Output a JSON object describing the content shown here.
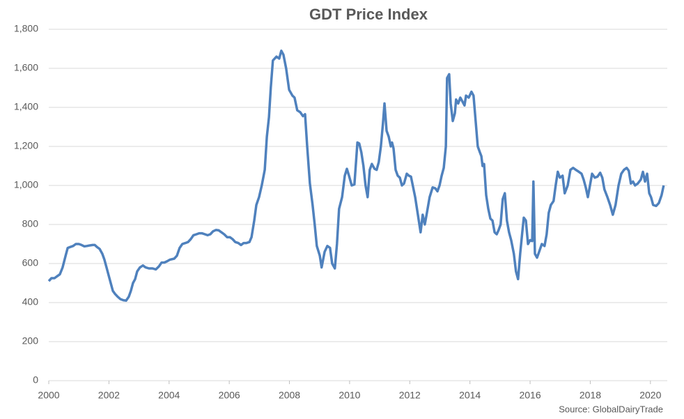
{
  "chart_data": {
    "type": "line",
    "title": "GDT Price Index",
    "source": "Source: GlobalDairyTrade",
    "xlim": [
      2000,
      2020.56
    ],
    "xticks": [
      2000,
      2002,
      2004,
      2006,
      2008,
      2010,
      2012,
      2014,
      2016,
      2018,
      2020
    ],
    "ylim": [
      0,
      1800
    ],
    "yticks": [
      0,
      200,
      400,
      600,
      800,
      {
        "value": 1000,
        "label": "1,000"
      },
      {
        "value": 1200,
        "label": "1,200"
      },
      {
        "value": 1400,
        "label": "1,400"
      },
      {
        "value": 1600,
        "label": "1,600"
      },
      {
        "value": 1800,
        "label": "1,800"
      }
    ],
    "grid": true,
    "series": [
      {
        "name": "GDT Price Index",
        "color": "#4f81bd",
        "x": [
          2000.0,
          2000.09,
          2000.19,
          2000.28,
          2000.37,
          2000.46,
          2000.56,
          2000.63,
          2000.72,
          2000.81,
          2000.9,
          2001.0,
          2001.09,
          2001.18,
          2001.27,
          2001.37,
          2001.46,
          2001.53,
          2001.6,
          2001.69,
          2001.78,
          2001.85,
          2001.92,
          2001.99,
          2002.06,
          2002.13,
          2002.2,
          2002.29,
          2002.38,
          2002.48,
          2002.57,
          2002.66,
          2002.73,
          2002.8,
          2002.87,
          2002.94,
          2003.03,
          2003.13,
          2003.22,
          2003.33,
          2003.45,
          2003.56,
          2003.66,
          2003.75,
          2003.84,
          2003.94,
          2004.03,
          2004.17,
          2004.26,
          2004.35,
          2004.44,
          2004.54,
          2004.63,
          2004.72,
          2004.81,
          2004.91,
          2005.0,
          2005.09,
          2005.19,
          2005.28,
          2005.37,
          2005.46,
          2005.56,
          2005.65,
          2005.74,
          2005.83,
          2005.93,
          2006.02,
          2006.11,
          2006.2,
          2006.3,
          2006.39,
          2006.48,
          2006.57,
          2006.67,
          2006.74,
          2006.83,
          2006.9,
          2006.99,
          2007.08,
          2007.18,
          2007.25,
          2007.32,
          2007.38,
          2007.45,
          2007.57,
          2007.66,
          2007.73,
          2007.8,
          2007.89,
          2007.99,
          2008.1,
          2008.17,
          2008.26,
          2008.36,
          2008.45,
          2008.52,
          2008.59,
          2008.68,
          2008.77,
          2008.84,
          2008.91,
          2009.01,
          2009.07,
          2009.17,
          2009.26,
          2009.35,
          2009.42,
          2009.51,
          2009.58,
          2009.65,
          2009.75,
          2009.84,
          2009.91,
          2009.98,
          2010.07,
          2010.16,
          2010.26,
          2010.32,
          2010.39,
          2010.46,
          2010.53,
          2010.6,
          2010.67,
          2010.74,
          2010.83,
          2010.9,
          2010.97,
          2011.04,
          2011.11,
          2011.16,
          2011.23,
          2011.3,
          2011.37,
          2011.41,
          2011.46,
          2011.53,
          2011.6,
          2011.67,
          2011.74,
          2011.81,
          2011.9,
          2011.97,
          2012.04,
          2012.18,
          2012.27,
          2012.36,
          2012.43,
          2012.5,
          2012.57,
          2012.66,
          2012.76,
          2012.85,
          2012.92,
          2012.99,
          2013.06,
          2013.13,
          2013.2,
          2013.24,
          2013.31,
          2013.36,
          2013.43,
          2013.5,
          2013.54,
          2013.61,
          2013.68,
          2013.75,
          2013.82,
          2013.87,
          2013.96,
          2014.05,
          2014.12,
          2014.19,
          2014.26,
          2014.33,
          2014.38,
          2014.42,
          2014.47,
          2014.54,
          2014.61,
          2014.68,
          2014.75,
          2014.82,
          2014.89,
          2014.95,
          2015.02,
          2015.09,
          2015.16,
          2015.23,
          2015.3,
          2015.37,
          2015.46,
          2015.53,
          2015.6,
          2015.67,
          2015.74,
          2015.79,
          2015.86,
          2015.93,
          2016.0,
          2016.07,
          2016.11,
          2016.16,
          2016.23,
          2016.3,
          2016.39,
          2016.48,
          2016.55,
          2016.62,
          2016.69,
          2016.78,
          2016.85,
          2016.92,
          2016.99,
          2017.08,
          2017.15,
          2017.25,
          2017.34,
          2017.43,
          2017.52,
          2017.62,
          2017.71,
          2017.78,
          2017.85,
          2017.92,
          2017.99,
          2018.06,
          2018.15,
          2018.24,
          2018.33,
          2018.4,
          2018.47,
          2018.57,
          2018.66,
          2018.75,
          2018.84,
          2018.94,
          2019.03,
          2019.12,
          2019.21,
          2019.28,
          2019.35,
          2019.42,
          2019.49,
          2019.58,
          2019.68,
          2019.75,
          2019.82,
          2019.89,
          2019.96,
          2020.02,
          2020.09,
          2020.19,
          2020.28,
          2020.37,
          2020.44
        ],
        "values": [
          510,
          525,
          525,
          535,
          545,
          580,
          640,
          680,
          685,
          690,
          700,
          700,
          695,
          688,
          690,
          693,
          695,
          695,
          685,
          675,
          650,
          620,
          580,
          540,
          500,
          460,
          445,
          430,
          418,
          412,
          410,
          430,
          460,
          500,
          520,
          560,
          580,
          590,
          580,
          575,
          575,
          570,
          585,
          605,
          605,
          612,
          620,
          625,
          640,
          680,
          700,
          705,
          710,
          725,
          745,
          750,
          755,
          755,
          750,
          745,
          750,
          765,
          772,
          770,
          760,
          750,
          735,
          735,
          725,
          710,
          705,
          695,
          705,
          705,
          710,
          735,
          820,
          900,
          940,
          1000,
          1080,
          1250,
          1350,
          1500,
          1640,
          1660,
          1650,
          1690,
          1670,
          1600,
          1490,
          1460,
          1450,
          1385,
          1375,
          1355,
          1365,
          1200,
          1010,
          900,
          800,
          690,
          640,
          580,
          660,
          690,
          680,
          600,
          575,
          700,
          880,
          940,
          1050,
          1085,
          1050,
          1000,
          1005,
          1220,
          1215,
          1170,
          1100,
          1000,
          940,
          1080,
          1110,
          1085,
          1080,
          1120,
          1200,
          1320,
          1420,
          1280,
          1250,
          1200,
          1220,
          1190,
          1080,
          1050,
          1040,
          1000,
          1010,
          1060,
          1050,
          1045,
          940,
          850,
          760,
          850,
          800,
          860,
          940,
          990,
          985,
          970,
          1000,
          1050,
          1090,
          1200,
          1550,
          1570,
          1420,
          1330,
          1370,
          1440,
          1420,
          1450,
          1430,
          1410,
          1460,
          1450,
          1480,
          1460,
          1330,
          1200,
          1170,
          1150,
          1100,
          1110,
          950,
          880,
          830,
          820,
          760,
          750,
          770,
          800,
          930,
          960,
          820,
          760,
          720,
          650,
          560,
          520,
          650,
          760,
          835,
          820,
          700,
          720,
          715,
          1020,
          650,
          630,
          660,
          700,
          690,
          750,
          860,
          900,
          920,
          1000,
          1070,
          1040,
          1050,
          960,
          1000,
          1080,
          1090,
          1080,
          1070,
          1060,
          1030,
          990,
          940,
          1000,
          1060,
          1040,
          1045,
          1065,
          1040,
          980,
          940,
          900,
          850,
          900,
          1000,
          1060,
          1080,
          1090,
          1075,
          1010,
          1020,
          1000,
          1010,
          1030,
          1070,
          1020,
          1060,
          960,
          940,
          900,
          895,
          910,
          950,
          1000
        ]
      }
    ]
  }
}
